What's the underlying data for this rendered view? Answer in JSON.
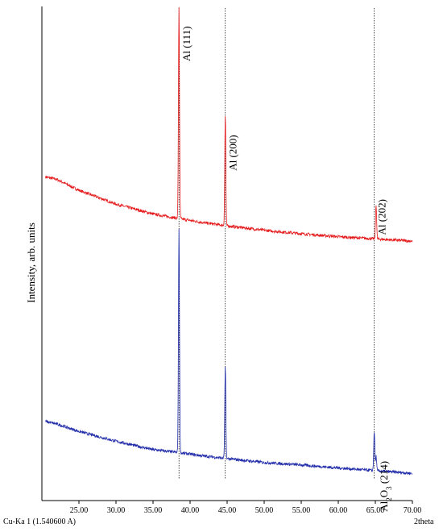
{
  "chart_data": {
    "type": "line",
    "xlabel": "2theta",
    "ylabel": "Intensity, arb. units",
    "source_label": "Cu-Ka 1 (1.540600 A)",
    "xlim": [
      20,
      70
    ],
    "x_ticks": [
      "25.00",
      "30.00",
      "35.00",
      "40.00",
      "45.00",
      "50.00",
      "55.00",
      "60.00",
      "65.00",
      "70.00"
    ],
    "x_tick_values": [
      25,
      30,
      35,
      40,
      45,
      50,
      55,
      60,
      65,
      70
    ],
    "y_units": "arbitrary",
    "grid": false,
    "series": [
      {
        "color": "#e41a1c",
        "baseline": [
          [
            20.5,
            0.655
          ],
          [
            22,
            0.65
          ],
          [
            25,
            0.628
          ],
          [
            30,
            0.6
          ],
          [
            35,
            0.58
          ],
          [
            38,
            0.572
          ],
          [
            42,
            0.562
          ],
          [
            45,
            0.556
          ],
          [
            50,
            0.547
          ],
          [
            55,
            0.54
          ],
          [
            60,
            0.534
          ],
          [
            64.5,
            0.53
          ],
          [
            70,
            0.525
          ]
        ],
        "peaks": [
          {
            "x": 38.5,
            "height": 1.0
          },
          {
            "x": 44.75,
            "height": 0.78
          },
          {
            "x": 65.1,
            "height": 0.6
          }
        ]
      },
      {
        "color": "#1f2aa8",
        "baseline": [
          [
            20.5,
            0.16
          ],
          [
            22,
            0.155
          ],
          [
            25,
            0.14
          ],
          [
            30,
            0.12
          ],
          [
            35,
            0.103
          ],
          [
            38,
            0.098
          ],
          [
            42,
            0.09
          ],
          [
            45,
            0.085
          ],
          [
            50,
            0.077
          ],
          [
            55,
            0.072
          ],
          [
            60,
            0.066
          ],
          [
            64.5,
            0.061
          ],
          [
            70,
            0.055
          ]
        ],
        "peaks": [
          {
            "x": 38.5,
            "height": 0.55
          },
          {
            "x": 44.75,
            "height": 0.27
          },
          {
            "x": 64.85,
            "height": 0.14
          },
          {
            "x": 65.1,
            "height": 0.09
          }
        ]
      }
    ],
    "reference_lines": [
      38.5,
      44.75,
      64.85
    ],
    "annotations": [
      {
        "parts": [
          {
            "t": "Al (111)"
          }
        ],
        "x": 38.5,
        "y": 0.96
      },
      {
        "parts": [
          {
            "t": "Al (200)"
          }
        ],
        "x": 44.75,
        "y": 0.74
      },
      {
        "parts": [
          {
            "t": "Al (202)"
          }
        ],
        "x": 64.85,
        "y": 0.61
      },
      {
        "parts": [
          {
            "t": "Al"
          },
          {
            "t": "2",
            "sub": true
          },
          {
            "t": "O"
          },
          {
            "t": "3",
            "sub": true
          },
          {
            "t": " (214)"
          }
        ],
        "x": 65.1,
        "y": 0.08
      }
    ]
  }
}
